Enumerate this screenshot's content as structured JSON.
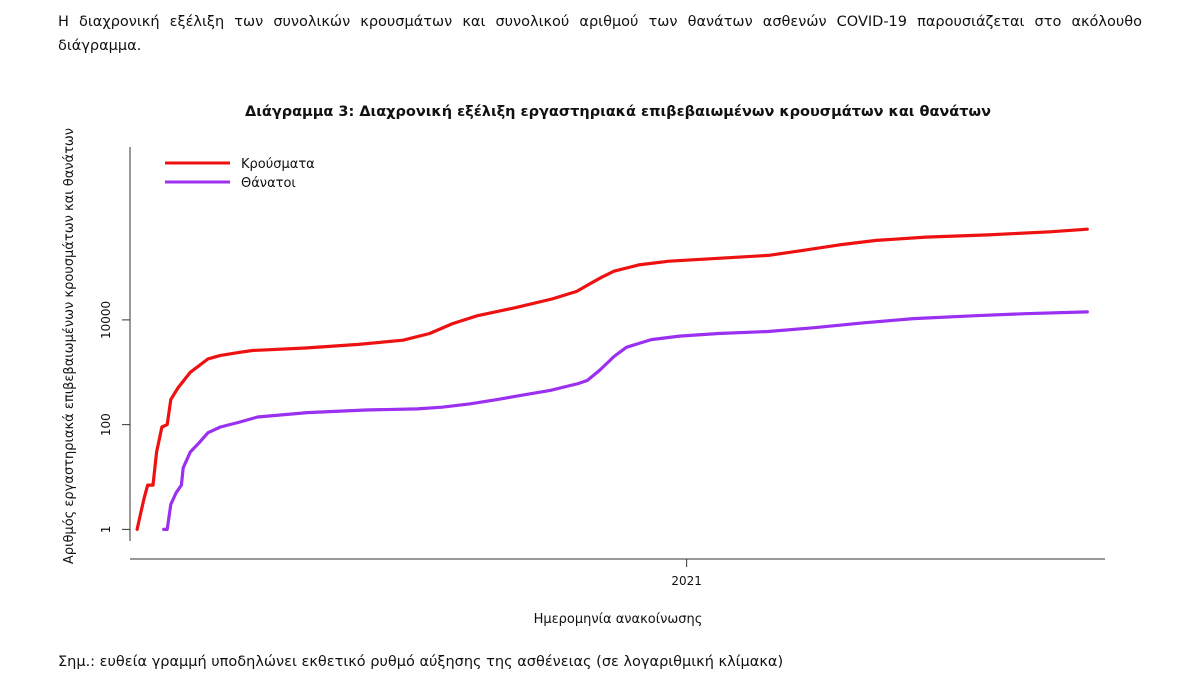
{
  "intro_text": "Η διαχρονική εξέλιξη των συνολικών κρουσμάτων και συνολικού αριθμού των θανάτων ασθενών COVID-19 παρουσιάζεται στο ακόλουθο διάγραμμα.",
  "note_text": "Σημ.: ευθεία γραμμή υποδηλώνει εκθετικό ρυθμό αύξησης της ασθένειας (σε λογαριθμική κλίμακα)",
  "chart_data": {
    "type": "line",
    "title": "Διάγραμμα 3: Διαχρονική εξέλιξη εργαστηριακά επιβεβαιωμένων κρουσμάτων και θανάτων",
    "xlabel": "Ημερομηνία ανακοίνωσης",
    "ylabel": "Αριθμός εργαστηριακά επιβεβαιωμένων κρουσμάτων και θανάτων",
    "y_scale": "log",
    "ylim": [
      0.6,
      20000000
    ],
    "y_ticks": [
      1,
      100,
      10000
    ],
    "y_tick_labels": [
      "1",
      "100",
      "10000"
    ],
    "xlim": [
      "2020-02-22",
      "2021-08-25"
    ],
    "x_ticks": [
      "2021-01-01"
    ],
    "x_tick_labels": [
      "2021"
    ],
    "legend_position": "top-left",
    "grid": false,
    "series": [
      {
        "name": "Κρούσματα",
        "color": "#ee1111",
        "points": [
          [
            "2020-02-26",
            1
          ],
          [
            "2020-02-28",
            2
          ],
          [
            "2020-03-01",
            4
          ],
          [
            "2020-03-03",
            7
          ],
          [
            "2020-03-06",
            7
          ],
          [
            "2020-03-08",
            30
          ],
          [
            "2020-03-11",
            90
          ],
          [
            "2020-03-14",
            100
          ],
          [
            "2020-03-16",
            300
          ],
          [
            "2020-03-20",
            500
          ],
          [
            "2020-03-27",
            1000
          ],
          [
            "2020-04-06",
            1800
          ],
          [
            "2020-04-13",
            2100
          ],
          [
            "2020-04-24",
            2400
          ],
          [
            "2020-05-01",
            2600
          ],
          [
            "2020-05-31",
            2900
          ],
          [
            "2020-06-30",
            3400
          ],
          [
            "2020-07-25",
            4100
          ],
          [
            "2020-08-09",
            5500
          ],
          [
            "2020-08-22",
            8500
          ],
          [
            "2020-09-05",
            12000
          ],
          [
            "2020-09-26",
            17000
          ],
          [
            "2020-10-17",
            25000
          ],
          [
            "2020-10-31",
            35000
          ],
          [
            "2020-11-07",
            48000
          ],
          [
            "2020-11-14",
            65000
          ],
          [
            "2020-11-21",
            85000
          ],
          [
            "2020-12-05",
            112000
          ],
          [
            "2020-12-22",
            132000
          ],
          [
            "2021-01-19",
            150000
          ],
          [
            "2021-02-16",
            170000
          ],
          [
            "2021-03-07",
            210000
          ],
          [
            "2021-03-28",
            270000
          ],
          [
            "2021-04-18",
            330000
          ],
          [
            "2021-05-16",
            380000
          ],
          [
            "2021-06-20",
            420000
          ],
          [
            "2021-07-25",
            480000
          ],
          [
            "2021-08-15",
            540000
          ]
        ]
      },
      {
        "name": "Θάνατοι",
        "color": "#9b30f0",
        "points": [
          [
            "2020-03-12",
            1
          ],
          [
            "2020-03-14",
            1
          ],
          [
            "2020-03-16",
            3
          ],
          [
            "2020-03-19",
            5
          ],
          [
            "2020-03-22",
            7
          ],
          [
            "2020-03-23",
            15
          ],
          [
            "2020-03-27",
            30
          ],
          [
            "2020-04-01",
            45
          ],
          [
            "2020-04-06",
            70
          ],
          [
            "2020-04-13",
            90
          ],
          [
            "2020-04-23",
            110
          ],
          [
            "2020-05-04",
            140
          ],
          [
            "2020-06-01",
            170
          ],
          [
            "2020-07-04",
            190
          ],
          [
            "2020-08-02",
            200
          ],
          [
            "2020-08-16",
            215
          ],
          [
            "2020-09-01",
            250
          ],
          [
            "2020-09-16",
            300
          ],
          [
            "2020-10-01",
            370
          ],
          [
            "2020-10-16",
            450
          ],
          [
            "2020-11-01",
            610
          ],
          [
            "2020-11-06",
            700
          ],
          [
            "2020-11-13",
            1100
          ],
          [
            "2020-11-21",
            2000
          ],
          [
            "2020-11-28",
            3000
          ],
          [
            "2020-12-12",
            4200
          ],
          [
            "2020-12-28",
            4900
          ],
          [
            "2021-01-19",
            5500
          ],
          [
            "2021-02-16",
            6000
          ],
          [
            "2021-03-14",
            7100
          ],
          [
            "2021-04-11",
            8800
          ],
          [
            "2021-05-09",
            10600
          ],
          [
            "2021-06-13",
            12000
          ],
          [
            "2021-07-11",
            13100
          ],
          [
            "2021-08-15",
            14200
          ]
        ]
      }
    ]
  }
}
